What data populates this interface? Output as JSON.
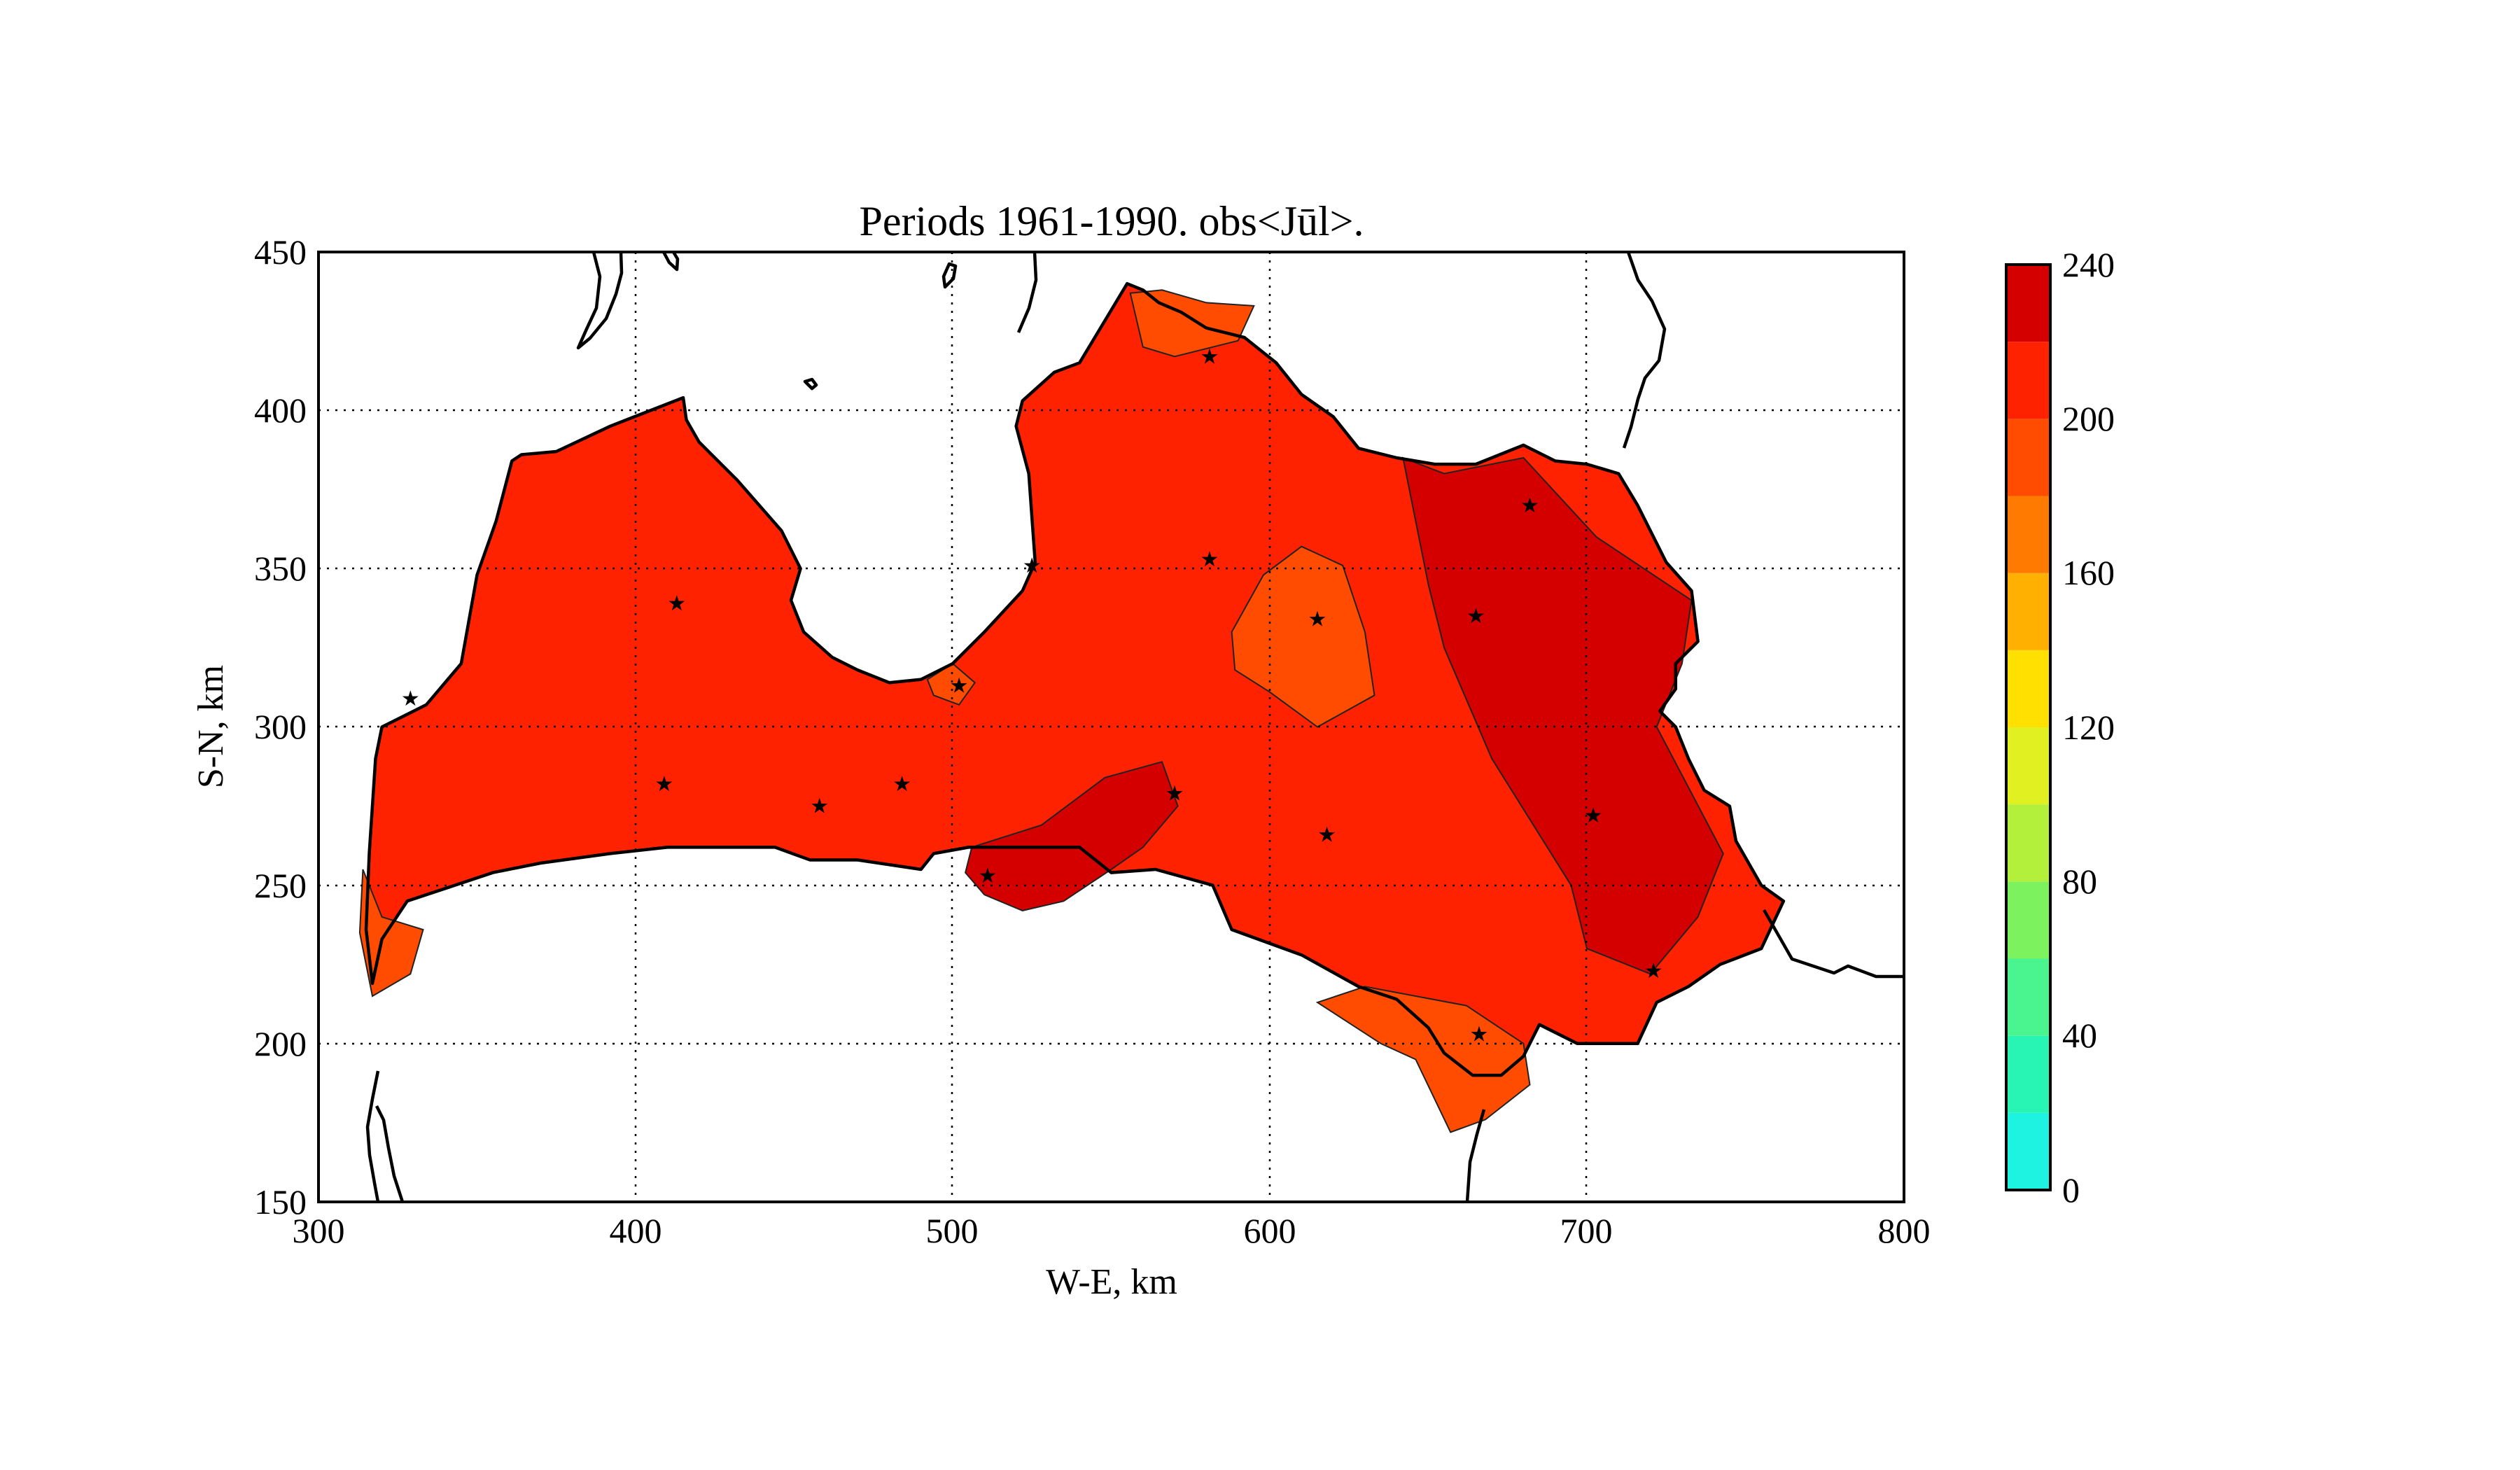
{
  "title": "Periods 1961-1990. obs<Jūl>.",
  "x_axis": {
    "label": "W-E, km",
    "ticks": [
      "300",
      "400",
      "500",
      "600",
      "700",
      "800"
    ],
    "range": [
      300,
      800
    ]
  },
  "y_axis": {
    "label": "S-N, km",
    "ticks": [
      "450",
      "400",
      "350",
      "300",
      "250",
      "200",
      "150"
    ],
    "range": [
      150,
      450
    ]
  },
  "grid": true,
  "colorbar": {
    "ticks": [
      "240",
      "200",
      "160",
      "120",
      "80",
      "40",
      "0"
    ],
    "range": [
      0,
      240
    ],
    "levels": [
      {
        "from": 0,
        "to": 20,
        "color": "#1ef2e0"
      },
      {
        "from": 20,
        "to": 40,
        "color": "#28f5b4"
      },
      {
        "from": 40,
        "to": 60,
        "color": "#4af590"
      },
      {
        "from": 60,
        "to": 80,
        "color": "#7cf25e"
      },
      {
        "from": 80,
        "to": 100,
        "color": "#b2f03c"
      },
      {
        "from": 100,
        "to": 120,
        "color": "#e0f020"
      },
      {
        "from": 120,
        "to": 140,
        "color": "#ffe000"
      },
      {
        "from": 140,
        "to": 160,
        "color": "#ffb000"
      },
      {
        "from": 160,
        "to": 180,
        "color": "#ff7a00"
      },
      {
        "from": 180,
        "to": 200,
        "color": "#ff4c00"
      },
      {
        "from": 200,
        "to": 220,
        "color": "#ff2200"
      },
      {
        "from": 220,
        "to": 240,
        "color": "#d40000"
      }
    ]
  },
  "map": {
    "base_color": "#ff2200",
    "zones": [
      {
        "name": "west-coast",
        "color": "#ff4c00",
        "points": [
          [
            314,
            255
          ],
          [
            320,
            240
          ],
          [
            333,
            236
          ],
          [
            329,
            222
          ],
          [
            317,
            215
          ],
          [
            313,
            235
          ]
        ]
      },
      {
        "name": "gulf-south",
        "color": "#ff4c00",
        "points": [
          [
            492,
            315
          ],
          [
            500,
            320
          ],
          [
            507,
            314
          ],
          [
            502,
            307
          ],
          [
            494,
            310
          ]
        ]
      },
      {
        "name": "north-center",
        "color": "#ff4c00",
        "points": [
          [
            556,
            437
          ],
          [
            566,
            438
          ],
          [
            580,
            434
          ],
          [
            595,
            433
          ],
          [
            590,
            422
          ],
          [
            570,
            417
          ],
          [
            560,
            420
          ]
        ]
      },
      {
        "name": "central-east",
        "color": "#ff4c00",
        "points": [
          [
            588,
            330
          ],
          [
            598,
            348
          ],
          [
            610,
            357
          ],
          [
            623,
            351
          ],
          [
            630,
            330
          ],
          [
            633,
            310
          ],
          [
            615,
            300
          ],
          [
            600,
            311
          ],
          [
            589,
            318
          ]
        ]
      },
      {
        "name": "south-east",
        "color": "#ff4c00",
        "points": [
          [
            615,
            213
          ],
          [
            635,
            200
          ],
          [
            646,
            195
          ],
          [
            657,
            172
          ],
          [
            668,
            176
          ],
          [
            682,
            187
          ],
          [
            680,
            200
          ],
          [
            662,
            212
          ],
          [
            630,
            218
          ]
        ]
      },
      {
        "name": "central-south-hot",
        "color": "#d40000",
        "points": [
          [
            506,
            262
          ],
          [
            528,
            269
          ],
          [
            548,
            284
          ],
          [
            566,
            289
          ],
          [
            571,
            275
          ],
          [
            560,
            262
          ],
          [
            550,
            255
          ],
          [
            535,
            245
          ],
          [
            522,
            242
          ],
          [
            510,
            247
          ],
          [
            504,
            254
          ]
        ]
      },
      {
        "name": "east-hot",
        "color": "#d40000",
        "points": [
          [
            642,
            385
          ],
          [
            655,
            380
          ],
          [
            680,
            385
          ],
          [
            703,
            360
          ],
          [
            733,
            340
          ],
          [
            730,
            320
          ],
          [
            722,
            300
          ],
          [
            743,
            260
          ],
          [
            735,
            240
          ],
          [
            720,
            222
          ],
          [
            700,
            230
          ],
          [
            695,
            250
          ],
          [
            670,
            290
          ],
          [
            655,
            325
          ],
          [
            650,
            345
          ]
        ]
      }
    ],
    "stations": [
      [
        413,
        339
      ],
      [
        409,
        282
      ],
      [
        458,
        275
      ],
      [
        484,
        282
      ],
      [
        502,
        313
      ],
      [
        511,
        253
      ],
      [
        525,
        351
      ],
      [
        570,
        279
      ],
      [
        581,
        417
      ],
      [
        581,
        353
      ],
      [
        615,
        334
      ],
      [
        618,
        266
      ],
      [
        665,
        335
      ],
      [
        682,
        370
      ],
      [
        666,
        203
      ],
      [
        702,
        272
      ],
      [
        721,
        223
      ],
      [
        329,
        309
      ]
    ]
  }
}
